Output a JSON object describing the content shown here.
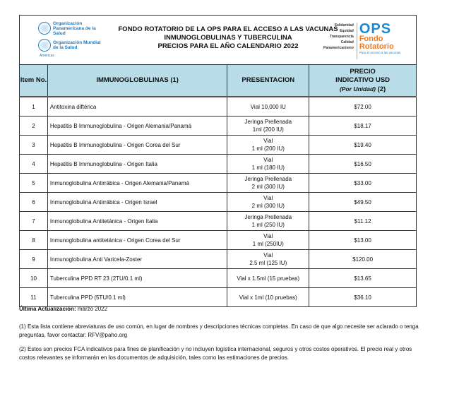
{
  "header": {
    "title_lines": [
      "FONDO ROTATORIO DE LA OPS PARA EL ACCESO A LAS VACUNAS",
      "INMUNOGLOBULINAS Y TUBERCULINA",
      "PRECIOS PARA EL AÑO CALENDARIO 2022"
    ],
    "left_logo": {
      "org1": "Organización Panamericana de la Salud",
      "org2": "Organización Mundial de la Salud",
      "region": "Américas"
    },
    "right_logo": {
      "values": [
        "Solidaridad",
        "Equidad",
        "Transparencia",
        "Calidad",
        "Panamericanismo"
      ],
      "brand": "OPS",
      "name": "Fondo Rotatorio",
      "tagline": "Para el acceso a las vacunas",
      "colors": {
        "ops": "#1a8ad4",
        "fondo": "#f07c22"
      }
    }
  },
  "table": {
    "columns": {
      "item": "Item No.",
      "name": "IMMUNOGLOBULINAS (1)",
      "presentation": "PRESENTACION",
      "price": "PRECIO INDICATIVO USD",
      "price_sub": "(Por Unidad)",
      "price_note": "(2)"
    },
    "header_bg": "#b8dce8",
    "rows": [
      {
        "item": "1",
        "name": "Antitoxina diftérica",
        "pres1": "Vial 10,000 IU",
        "pres2": "",
        "price": "$72.00"
      },
      {
        "item": "2",
        "name": "Hepatitis B Immunoglobulina -  Origen Alemania/Panamá",
        "pres1": "Jeringa Prellenada",
        "pres2": "1ml (200 IU)",
        "price": "$18.17"
      },
      {
        "item": "3",
        "name": "Hepatitis B Immunoglobulina - Origen Corea del Sur",
        "pres1": "Vial",
        "pres2": "1 ml (200 IU)",
        "price": "$19.40"
      },
      {
        "item": "4",
        "name": "Hepatitis B Immunoglobulina - Origen Italia",
        "pres1": "Vial",
        "pres2": "1 ml (180 IU)",
        "price": "$16.50"
      },
      {
        "item": "5",
        "name": "Inmunoglobulina Antirrábica -  Origen Alemania/Panamá",
        "pres1": "Jeringa Prellenada",
        "pres2": "2 ml (300 IU)",
        "price": "$33.00"
      },
      {
        "item": "6",
        "name": "Inmunoglobulina Antirrábica - Origen Israel",
        "pres1": "Vial",
        "pres2": "2 ml (300 IU)",
        "price": "$49.50"
      },
      {
        "item": "7",
        "name": "Inmunoglobulina Antitetánica - Origen Italia",
        "pres1": "Jeringa Prellenada",
        "pres2": "1 ml (250 IU)",
        "price": "$11.12"
      },
      {
        "item": "8",
        "name": "Inmunoglobulina antitetánica - Origen Corea del Sur",
        "pres1": "Vial",
        "pres2": "1 ml (250IU)",
        "price": "$13.00"
      },
      {
        "item": "9",
        "name": "Inmunoglobulina Anti Varicela-Zoster",
        "pres1": "Vial",
        "pres2": "2.5 ml (125 IU)",
        "price": "$120.00"
      },
      {
        "item": "10",
        "name": "Tuberculina PPD RT 23 (2TU/0.1 ml)",
        "pres1": "Vial x 1.5ml (15 pruebas)",
        "pres2": "",
        "price": "$13.65"
      },
      {
        "item": "11",
        "name": "Tuberculina PPD (5TU/0.1 ml)",
        "pres1": "Vial x 1ml (10 pruebas)",
        "pres2": "",
        "price": "$36.10"
      }
    ]
  },
  "footer": {
    "updated_label": "Última Actualización:",
    "updated_value": " marzo 2022",
    "note1": "(1) Esta lista contiene abreviaturas de uso común, en lugar de nombres y descripciones técnicas completas. En caso de que algo necesite ser aclarado o tenga preguntas, favor contactar: RFV@paho.org",
    "note2": "(2) Estos son precios FCA indicativos para fines de planificación y no incluyen logística internacional, seguros y otros costos operativos. El precio real y otros costos relevantes se informarán en los documentos de adquisición, tales como las estimaciones de precios."
  }
}
